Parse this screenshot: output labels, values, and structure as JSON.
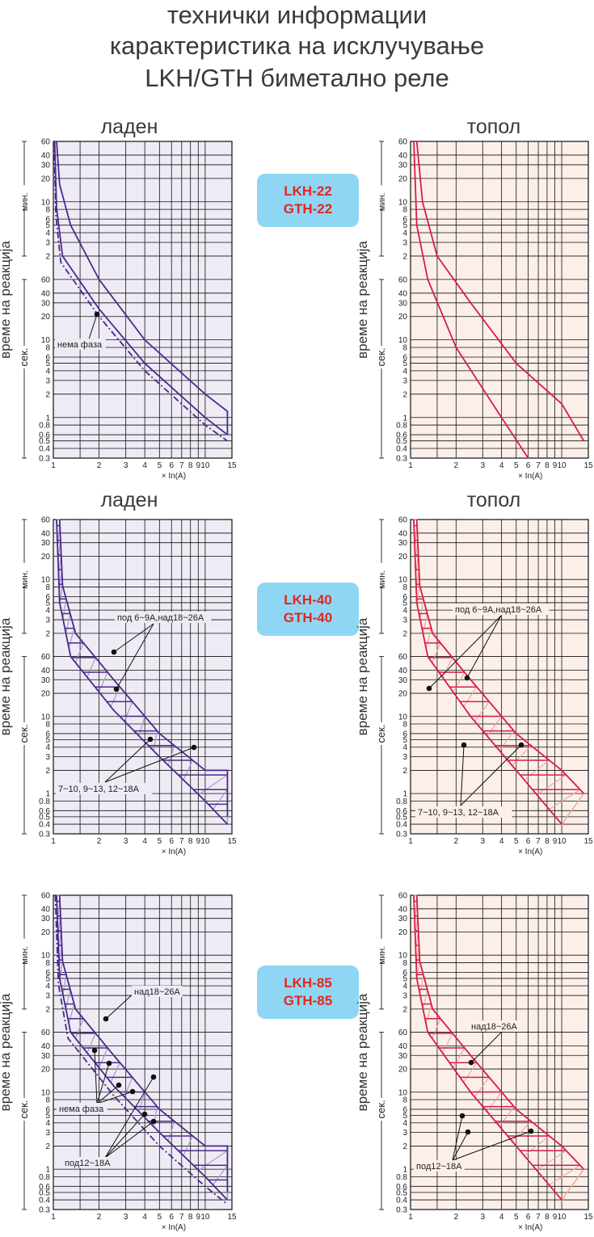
{
  "title": {
    "line1": "технички информации",
    "line2": "карактеристика на исклучување",
    "line3": "LKH/GTH биметално реле"
  },
  "headers": {
    "cold": "ладен",
    "hot": "топол"
  },
  "models": [
    {
      "line1": "LKH-22",
      "line2": "GTH-22"
    },
    {
      "line1": "LKH-40",
      "line2": "GTH-40"
    },
    {
      "line1": "LKH-85",
      "line2": "GTH-85"
    }
  ],
  "colors": {
    "cold_line": "#4b2a8c",
    "cold_light": "#a898d0",
    "cold_bg": "#eeebf5",
    "hot_line": "#d81b4e",
    "hot_light": "#efab92",
    "hot_bg": "#fcefe9",
    "grid": "#111111",
    "label_box": "#8fd6f4",
    "label_text": "#e3271c"
  },
  "chart_data": [
    {
      "id": "lkh22-cold",
      "type": "line",
      "xscale": "log",
      "yscale": "log",
      "xlim": [
        1,
        15
      ],
      "ylim_seconds": [
        0.3,
        3600
      ],
      "x_ticks": [
        "1",
        "2",
        "3",
        "4",
        "5",
        "6",
        "7",
        "8",
        "9",
        "10",
        "15"
      ],
      "y_ticks_min": [
        "60",
        "40",
        "30",
        "20",
        "10",
        "8",
        "6",
        "5",
        "4",
        "3",
        "2"
      ],
      "y_ticks_sec": [
        "60",
        "40",
        "30",
        "20",
        "10",
        "8",
        "6",
        "5",
        "4",
        "3",
        "2",
        "1",
        "0.8",
        "0.6",
        "0.5",
        "0.4",
        "0.3"
      ],
      "ylabel": "време на реакција",
      "unit_min": "мин.",
      "unit_sec": "сек.",
      "xlabel": "× In(A)",
      "series": [
        {
          "values": [
            [
              1.05,
              3600
            ],
            [
              1.1,
              1000
            ],
            [
              1.3,
              300
            ],
            [
              2,
              60
            ],
            [
              4,
              10
            ],
            [
              10,
              2
            ],
            [
              14,
              1.2
            ],
            [
              14,
              0.6
            ]
          ]
        },
        {
          "values": [
            [
              1.02,
              3600
            ],
            [
              1.05,
              500
            ],
            [
              1.15,
              120
            ],
            [
              2,
              25
            ],
            [
              4,
              5
            ],
            [
              10,
              1
            ],
            [
              14,
              0.6
            ]
          ]
        },
        {
          "dashed": true,
          "values": [
            [
              1.01,
              3600
            ],
            [
              1.04,
              400
            ],
            [
              1.12,
              100
            ],
            [
              2,
              20
            ],
            [
              4,
              4
            ],
            [
              10,
              0.8
            ],
            [
              14,
              0.5
            ]
          ]
        }
      ],
      "annotations": [
        {
          "text": "нема фаза"
        }
      ]
    },
    {
      "id": "lkh22-hot",
      "type": "line",
      "xscale": "log",
      "yscale": "log",
      "xlim": [
        1,
        15
      ],
      "ylim_seconds": [
        0.3,
        3600
      ],
      "series": [
        {
          "values": [
            [
              1.1,
              3600
            ],
            [
              1.2,
              600
            ],
            [
              1.5,
              120
            ],
            [
              2.5,
              30
            ],
            [
              5,
              5
            ],
            [
              10,
              1.5
            ],
            [
              14,
              0.5
            ]
          ]
        },
        {
          "values": [
            [
              1.05,
              3600
            ],
            [
              1.1,
              300
            ],
            [
              1.3,
              60
            ],
            [
              2,
              8
            ],
            [
              4,
              1
            ],
            [
              6,
              0.3
            ]
          ]
        }
      ]
    },
    {
      "id": "lkh40-cold",
      "type": "line",
      "xscale": "log",
      "yscale": "log",
      "xlim": [
        1,
        15
      ],
      "ylim_seconds": [
        0.3,
        3600
      ],
      "series": [
        {
          "values": [
            [
              1.1,
              3600
            ],
            [
              1.15,
              500
            ],
            [
              1.4,
              120
            ],
            [
              2.5,
              30
            ],
            [
              5,
              6
            ],
            [
              10,
              2
            ],
            [
              14,
              2
            ],
            [
              14,
              0.5
            ]
          ]
        },
        {
          "values": [
            [
              1.05,
              3600
            ],
            [
              1.1,
              300
            ],
            [
              1.3,
              60
            ],
            [
              2.5,
              12
            ],
            [
              5,
              3
            ],
            [
              10,
              0.8
            ],
            [
              14,
              0.4
            ]
          ]
        }
      ],
      "annotations": [
        {
          "text": "под 6~9A,над18~26A"
        },
        {
          "text": "7~10, 9~13, 12~18A"
        }
      ]
    },
    {
      "id": "lkh40-hot",
      "type": "line",
      "xscale": "log",
      "yscale": "log",
      "xlim": [
        1,
        15
      ],
      "ylim_seconds": [
        0.3,
        3600
      ],
      "series": [
        {
          "values": [
            [
              1.1,
              3600
            ],
            [
              1.15,
              500
            ],
            [
              1.4,
              120
            ],
            [
              2.5,
              30
            ],
            [
              5,
              6
            ],
            [
              10,
              2
            ],
            [
              14,
              1
            ]
          ]
        },
        {
          "values": [
            [
              1.05,
              3600
            ],
            [
              1.1,
              300
            ],
            [
              1.3,
              60
            ],
            [
              2.5,
              10
            ],
            [
              5,
              2
            ],
            [
              10,
              0.4
            ]
          ]
        }
      ],
      "annotations": [
        {
          "text": "под 6~9A,над18~26A"
        },
        {
          "text": "7~10, 9~13, 12~18A"
        }
      ]
    },
    {
      "id": "lkh85-cold",
      "type": "line",
      "xscale": "log",
      "yscale": "log",
      "xlim": [
        1,
        15
      ],
      "ylim_seconds": [
        0.3,
        3600
      ],
      "series": [
        {
          "values": [
            [
              1.1,
              3600
            ],
            [
              1.15,
              500
            ],
            [
              1.4,
              120
            ],
            [
              2.5,
              30
            ],
            [
              5,
              6
            ],
            [
              10,
              2
            ],
            [
              14,
              2
            ],
            [
              14,
              0.5
            ]
          ]
        },
        {
          "values": [
            [
              1.05,
              3600
            ],
            [
              1.1,
              300
            ],
            [
              1.3,
              60
            ],
            [
              2.5,
              12
            ],
            [
              5,
              3
            ],
            [
              10,
              0.8
            ],
            [
              14,
              0.4
            ]
          ]
        },
        {
          "dashed": true,
          "values": [
            [
              1.03,
              3600
            ],
            [
              1.08,
              250
            ],
            [
              1.25,
              50
            ],
            [
              2.5,
              9
            ],
            [
              5,
              2
            ],
            [
              10,
              0.6
            ],
            [
              14,
              0.35
            ]
          ]
        }
      ],
      "annotations": [
        {
          "text": "над18~26A"
        },
        {
          "text": "нема фаза"
        },
        {
          "text": "под12~18A"
        }
      ]
    },
    {
      "id": "lkh85-hot",
      "type": "line",
      "xscale": "log",
      "yscale": "log",
      "xlim": [
        1,
        15
      ],
      "ylim_seconds": [
        0.3,
        3600
      ],
      "series": [
        {
          "values": [
            [
              1.1,
              3600
            ],
            [
              1.15,
              500
            ],
            [
              1.4,
              120
            ],
            [
              2.5,
              30
            ],
            [
              5,
              6
            ],
            [
              10,
              2
            ],
            [
              14,
              1
            ]
          ]
        },
        {
          "values": [
            [
              1.05,
              3600
            ],
            [
              1.1,
              300
            ],
            [
              1.3,
              60
            ],
            [
              2.5,
              10
            ],
            [
              5,
              2
            ],
            [
              10,
              0.4
            ]
          ]
        }
      ],
      "annotations": [
        {
          "text": "над18~26A"
        },
        {
          "text": "под12~18A"
        }
      ]
    }
  ]
}
